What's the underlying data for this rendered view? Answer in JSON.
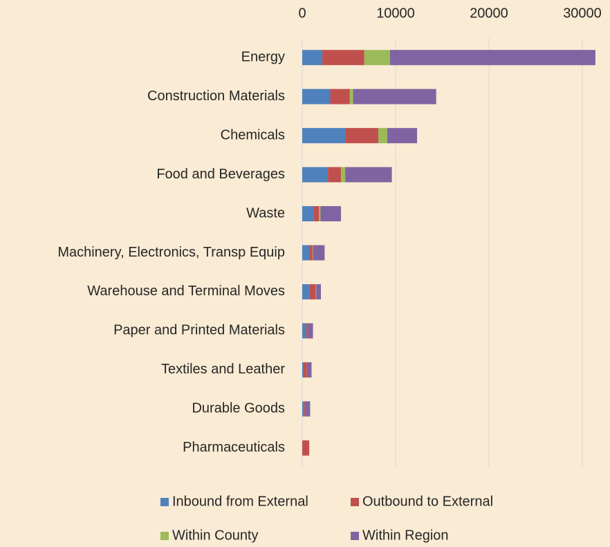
{
  "chart_data": {
    "type": "stacked-bar-horizontal",
    "categories": [
      "Energy",
      "Construction Materials",
      "Chemicals",
      "Food and Beverages",
      "Waste",
      "Machinery, Electronics, Transp Equip",
      "Warehouse and Terminal Moves",
      "Paper and Printed Materials",
      "Textiles and Leather",
      "Durable Goods",
      "Pharmaceuticals"
    ],
    "series": [
      {
        "name": "Inbound from External",
        "color": "#4f81bd",
        "values": [
          2150,
          3000,
          4600,
          2750,
          1200,
          750,
          800,
          450,
          150,
          200,
          0
        ]
      },
      {
        "name": "Outbound to External",
        "color": "#c0504d",
        "values": [
          4500,
          2100,
          3550,
          1400,
          600,
          350,
          650,
          200,
          350,
          100,
          750
        ]
      },
      {
        "name": "Within County",
        "color": "#9bbb59",
        "values": [
          2750,
          350,
          950,
          450,
          150,
          50,
          50,
          0,
          0,
          0,
          0
        ]
      },
      {
        "name": "Within Region",
        "color": "#8064a2",
        "values": [
          22000,
          8900,
          3200,
          5000,
          2200,
          1250,
          500,
          500,
          500,
          550,
          0
        ]
      }
    ],
    "xlim": [
      0,
      32000
    ],
    "xticks": [
      0,
      10000,
      20000,
      30000
    ],
    "grid": true,
    "legend": "bottom"
  }
}
